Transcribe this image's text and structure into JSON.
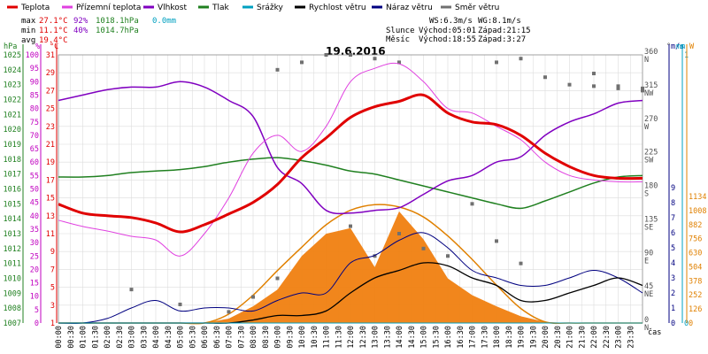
{
  "chart_data": {
    "type": "line",
    "title": "19.6.2016",
    "xlabel": "čas",
    "legend": [
      {
        "name": "Teplota",
        "color": "#e00000"
      },
      {
        "name": "Přízemní teplota",
        "color": "#e040e0"
      },
      {
        "name": "Vlhkost",
        "color": "#8000c0"
      },
      {
        "name": "Tlak",
        "color": "#208020"
      },
      {
        "name": "Srážky",
        "color": "#00a0c0"
      },
      {
        "name": "Rychlost větru",
        "color": "#000000"
      },
      {
        "name": "Náraz větru",
        "color": "#000080"
      },
      {
        "name": "Směr větru",
        "color": "#707070"
      }
    ],
    "stats": {
      "max": {
        "label": "max",
        "t": "27.1°C",
        "h": "92%",
        "p": "1018.1hPa",
        "r": "0.0mm"
      },
      "min": {
        "label": "min",
        "t": "11.1°C",
        "h": "40%",
        "p": "1014.7hPa"
      },
      "avg": {
        "label": "avg",
        "t": "19.4°C"
      }
    },
    "info": {
      "ws": "WS:6.3m/s",
      "wg": "WG:8.1m/s",
      "sun_label": "Slunce",
      "sunrise": "Východ:05:01",
      "sunset": "Západ:21:15",
      "moon_label": "Měsíc",
      "moonrise": "Východ:18:55",
      "moonset": "Západ:3:27"
    },
    "axes": {
      "hpa": {
        "unit": "hPa",
        "ticks": [
          "1007",
          "1008",
          "1009",
          "1010",
          "1011",
          "1012",
          "1013",
          "1014",
          "1015",
          "1016",
          "1017",
          "1018",
          "1019",
          "1020",
          "1021",
          "1022",
          "1023",
          "1024",
          "1025"
        ]
      },
      "pct": {
        "unit": "%",
        "ticks": [
          "0",
          "5",
          "10",
          "15",
          "20",
          "25",
          "30",
          "35",
          "40",
          "45",
          "50",
          "55",
          "60",
          "65",
          "70",
          "75",
          "80",
          "85",
          "90",
          "95",
          "100"
        ]
      },
      "temp": {
        "unit": "°C",
        "ticks": [
          "1",
          "3",
          "5",
          "7",
          "9",
          "11",
          "13",
          "15",
          "17",
          "19",
          "21",
          "23",
          "25",
          "27",
          "29",
          "31"
        ]
      },
      "dir": {
        "unit": "°",
        "ticks": [
          {
            "v": "0",
            "l": "N"
          },
          {
            "v": "45",
            "l": "NE"
          },
          {
            "v": "90",
            "l": "E"
          },
          {
            "v": "135",
            "l": "SE"
          },
          {
            "v": "180",
            "l": "S"
          },
          {
            "v": "225",
            "l": "SW"
          },
          {
            "v": "270",
            "l": "W"
          },
          {
            "v": "315",
            "l": "NW"
          },
          {
            "v": "360",
            "l": "N"
          }
        ]
      },
      "wind": {
        "unit": "m/s",
        "ticks": [
          "0",
          "1",
          "2",
          "3",
          "4",
          "5",
          "6",
          "7",
          "8",
          "9"
        ]
      },
      "rain": {
        "unit": "mm",
        "ticks": [
          "0",
          "1"
        ]
      },
      "solar": {
        "unit": "W",
        "ticks": [
          "0",
          "126",
          "252",
          "378",
          "504",
          "630",
          "756",
          "882",
          "1008",
          "1134"
        ]
      }
    },
    "xticks": [
      "00:00",
      "00:30",
      "01:00",
      "01:30",
      "02:00",
      "02:30",
      "03:00",
      "03:30",
      "04:00",
      "04:30",
      "05:00",
      "05:30",
      "06:00",
      "06:30",
      "07:00",
      "07:30",
      "08:00",
      "08:30",
      "09:00",
      "09:30",
      "10:00",
      "10:30",
      "11:00",
      "11:30",
      "12:00",
      "12:30",
      "13:00",
      "13:30",
      "14:00",
      "14:30",
      "15:00",
      "15:30",
      "16:00",
      "16:30",
      "17:00",
      "17:30",
      "18:00",
      "18:30",
      "19:00",
      "19:30",
      "20:00",
      "20:30",
      "21:00",
      "21:30",
      "22:00",
      "22:30",
      "23:00",
      "23:30"
    ],
    "x": [
      0,
      1,
      2,
      3,
      4,
      5,
      6,
      7,
      8,
      9,
      10,
      11,
      12,
      13,
      14,
      15,
      16,
      17,
      18,
      19,
      20,
      21,
      22,
      23,
      24
    ],
    "temperature": [
      14.3,
      13.3,
      13.0,
      12.8,
      12.2,
      11.2,
      12.0,
      13.2,
      14.5,
      16.5,
      19.5,
      21.7,
      24.0,
      25.2,
      25.8,
      26.5,
      24.5,
      23.5,
      23.2,
      22.0,
      20.0,
      18.5,
      17.5,
      17.2,
      17.2
    ],
    "ground_temp": [
      12.5,
      11.8,
      11.3,
      10.7,
      10.3,
      8.5,
      11.0,
      15.0,
      20.0,
      22.0,
      20.2,
      23.0,
      28.0,
      29.5,
      30.0,
      28.0,
      25.0,
      24.5,
      23.0,
      21.5,
      19.0,
      17.5,
      17.0,
      16.8,
      16.8
    ],
    "humidity": [
      83,
      85,
      87,
      88,
      88,
      90,
      88,
      83,
      77,
      58,
      52,
      42,
      41,
      42,
      43,
      48,
      53,
      55,
      60,
      62,
      70,
      75,
      78,
      82,
      83
    ],
    "pressure": [
      1016.8,
      1016.8,
      1016.9,
      1017.1,
      1017.2,
      1017.3,
      1017.5,
      1017.8,
      1018.0,
      1018.1,
      1017.9,
      1017.6,
      1017.2,
      1017.0,
      1016.6,
      1016.2,
      1015.8,
      1015.4,
      1015.0,
      1014.7,
      1015.2,
      1015.8,
      1016.4,
      1016.8,
      1016.9
    ],
    "wind_speed": [
      0,
      0,
      0,
      0,
      0,
      0,
      0,
      0,
      0.2,
      0.5,
      0.5,
      0.8,
      2.0,
      3.0,
      3.5,
      4.0,
      3.8,
      3.0,
      2.5,
      1.5,
      1.5,
      2.0,
      2.5,
      3.0,
      2.5
    ],
    "wind_gust": [
      0,
      0,
      0.3,
      1.0,
      1.5,
      0.8,
      1.0,
      1.0,
      0.8,
      1.5,
      2.0,
      2.0,
      4.0,
      4.5,
      5.5,
      6.0,
      5.0,
      3.5,
      3.0,
      2.5,
      2.5,
      3.0,
      3.5,
      3.0,
      2.0
    ],
    "wind_dir": [
      null,
      null,
      null,
      45,
      null,
      25,
      null,
      15,
      35,
      60,
      null,
      null,
      130,
      90,
      120,
      100,
      90,
      160,
      110,
      80,
      null,
      null,
      335,
      318,
      315
    ],
    "wind_dir_hi": [
      null,
      null,
      null,
      null,
      null,
      null,
      null,
      null,
      null,
      340,
      350,
      360,
      360,
      355,
      350,
      null,
      null,
      null,
      350,
      355,
      330,
      320,
      318,
      315,
      312
    ],
    "rain": [
      0,
      0,
      0,
      0,
      0,
      0,
      0,
      0,
      0,
      0,
      0,
      0,
      0,
      0,
      0,
      0,
      0,
      0,
      0,
      0,
      0,
      0,
      0,
      0,
      0
    ],
    "solar_theoretical": [
      0,
      0,
      0,
      0,
      0,
      0,
      0,
      80,
      250,
      470,
      680,
      880,
      1010,
      1060,
      1040,
      950,
      780,
      570,
      340,
      130,
      10,
      0,
      0,
      0,
      0
    ],
    "solar": [
      0,
      0,
      0,
      0,
      0,
      0,
      0,
      40,
      150,
      300,
      600,
      800,
      850,
      500,
      1000,
      750,
      400,
      250,
      150,
      60,
      10,
      0,
      0,
      0,
      0
    ]
  }
}
